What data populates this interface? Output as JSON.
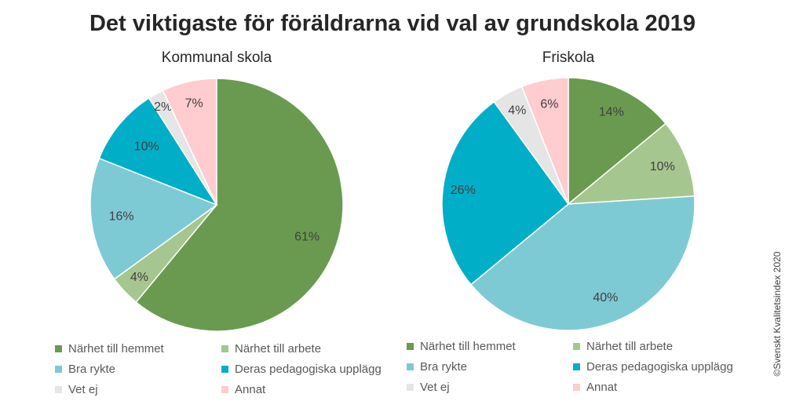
{
  "title": "Det viktigaste för föräldrarna vid val av grundskola 2019",
  "copyright": "©Svenskt Kvalitetsindex 2020",
  "chart_data": [
    {
      "type": "pie",
      "title": "Kommunal skola",
      "categories": [
        "Närhet till hemmet",
        "Närhet till arbete",
        "Bra rykte",
        "Deras pedagogiska upplägg",
        "Vet ej",
        "Annat"
      ],
      "values": [
        61,
        4,
        16,
        10,
        2,
        7
      ],
      "labels": [
        "61%",
        "4%",
        "16%",
        "10%",
        "2%",
        "7%"
      ],
      "colors": [
        "#6a9a4f",
        "#a6c68f",
        "#7ecad4",
        "#00aec8",
        "#e5e5e5",
        "#ffcccf"
      ],
      "legend": "bottom"
    },
    {
      "type": "pie",
      "title": "Friskola",
      "categories": [
        "Närhet till hemmet",
        "Närhet till arbete",
        "Bra rykte",
        "Deras pedagogiska upplägg",
        "Vet ej",
        "Annat"
      ],
      "values": [
        14,
        10,
        40,
        26,
        4,
        6
      ],
      "labels": [
        "14%",
        "10%",
        "40%",
        "26%",
        "4%",
        "6%"
      ],
      "colors": [
        "#6a9a4f",
        "#a6c68f",
        "#7ecad4",
        "#00aec8",
        "#e5e5e5",
        "#ffcccf"
      ],
      "legend": "bottom"
    }
  ]
}
